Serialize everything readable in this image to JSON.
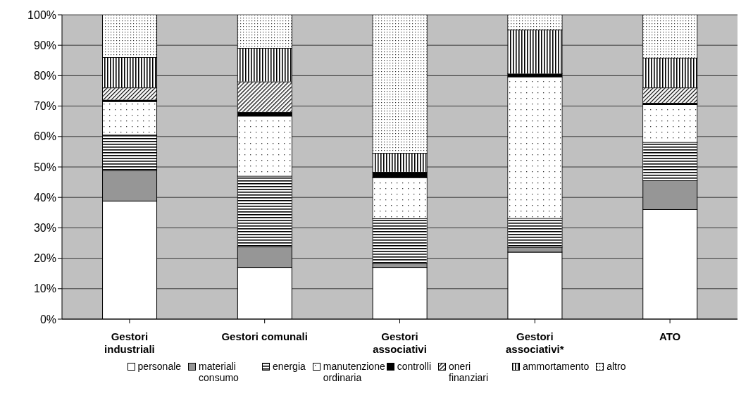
{
  "chart_data": {
    "type": "bar",
    "stacked": true,
    "categories": [
      "Gestori industriali",
      "Gestori comunali",
      "Gestori associativi",
      "Gestori associativi*",
      "ATO"
    ],
    "series": [
      {
        "name": "personale",
        "color": "#ffffff",
        "values": [
          38.8,
          17.0,
          17.0,
          22.0,
          36.0
        ]
      },
      {
        "name": "materiali consumo",
        "color": "#969696",
        "values": [
          10.0,
          6.8,
          1.3,
          1.6,
          9.5
        ]
      },
      {
        "name": "energia",
        "color": "#ffffff",
        "values": [
          11.7,
          23.2,
          14.7,
          9.5,
          12.6
        ]
      },
      {
        "name": "manutenzione ordinaria",
        "color": "#ffffff",
        "values": [
          11.0,
          19.7,
          13.5,
          46.5,
          12.4
        ]
      },
      {
        "name": "controlli",
        "color": "#000000",
        "values": [
          0.5,
          1.3,
          1.8,
          1.0,
          0.5
        ]
      },
      {
        "name": "oneri finanziari",
        "color": "#ffffff",
        "values": [
          4.0,
          10.0,
          0,
          0,
          5.0
        ]
      },
      {
        "name": "ammortamento",
        "color": "#ffffff",
        "values": [
          10.0,
          11.0,
          6.2,
          14.4,
          9.8
        ]
      },
      {
        "name": "altro",
        "color": "#ffffff",
        "values": [
          14.0,
          11.0,
          45.5,
          5.0,
          14.2
        ]
      }
    ],
    "ylim": [
      0,
      100
    ],
    "yticks": [
      {
        "value": 0,
        "label": "0%"
      },
      {
        "value": 10,
        "label": "10%"
      },
      {
        "value": 20,
        "label": "20%"
      },
      {
        "value": 30,
        "label": "30%"
      },
      {
        "value": 40,
        "label": "40%"
      },
      {
        "value": 50,
        "label": "50%"
      },
      {
        "value": 60,
        "label": "60%"
      },
      {
        "value": 70,
        "label": "70%"
      },
      {
        "value": 80,
        "label": "80%"
      },
      {
        "value": 90,
        "label": "90%"
      },
      {
        "value": 100,
        "label": "100%"
      }
    ],
    "grid": "y",
    "legend": "bottom"
  }
}
